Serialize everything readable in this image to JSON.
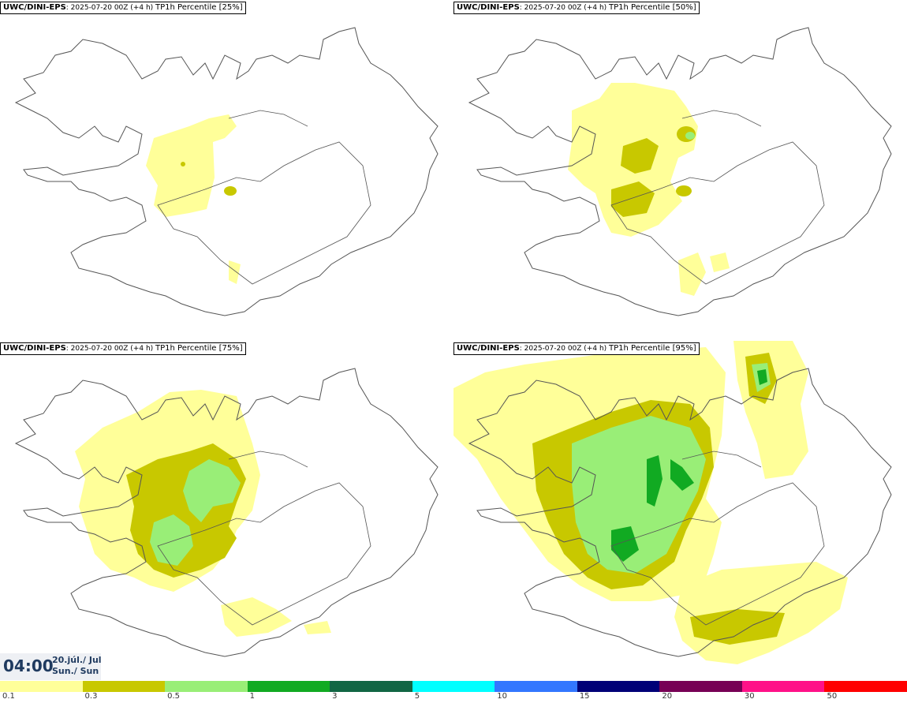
{
  "panels": [
    {
      "model": "UWC/DINI-EPS",
      "run": ": 2025-07-20 00Z (+4 h)",
      "field": "TP1h Percentile [25%]"
    },
    {
      "model": "UWC/DINI-EPS",
      "run": ": 2025-07-20 00Z (+4 h)",
      "field": "TP1h Percentile [50%]"
    },
    {
      "model": "UWC/DINI-EPS",
      "run": ": 2025-07-20 00Z (+4 h)",
      "field": "TP1h Percentile [75%]"
    },
    {
      "model": "UWC/DINI-EPS",
      "run": ": 2025-07-20 00Z (+4 h)",
      "field": "TP1h Percentile [95%]"
    }
  ],
  "time": {
    "hour": "04:00",
    "date_line1": "20.júl./ Jul",
    "date_line2": "Sun./ Sun"
  },
  "legend": {
    "colors": [
      "#ffff99",
      "#c8c800",
      "#99ee77",
      "#11aa22",
      "#116644",
      "#00ffff",
      "#3377ff",
      "#000077",
      "#770055",
      "#ff1188",
      "#ff0000"
    ],
    "ticks": [
      "0.1",
      "0.3",
      "0.5",
      "1",
      "3",
      "5",
      "10",
      "15",
      "20",
      "30",
      "50"
    ]
  },
  "map_colors": {
    "light": "#ffff99",
    "olive": "#c8c800",
    "lightgreen": "#99ee77",
    "green": "#11aa22",
    "coast": "#555555"
  }
}
